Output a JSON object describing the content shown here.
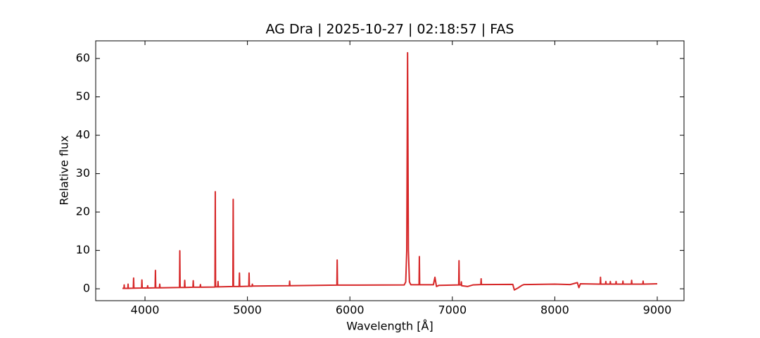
{
  "chart_data": {
    "type": "line",
    "title": "AG Dra | 2025-10-27 | 02:18:57 | FAS",
    "x_label": "Wavelength [Å]",
    "y_label": "Relative flux",
    "xlim": [
      3519,
      9261
    ],
    "ylim": [
      -3.1,
      64.6
    ],
    "xticks": [
      4000,
      5000,
      6000,
      7000,
      8000,
      9000
    ],
    "yticks": [
      0,
      10,
      20,
      30,
      40,
      50,
      60
    ],
    "x": [
      3780,
      3795,
      3797,
      3799,
      3833,
      3835,
      3837,
      3886,
      3889,
      3892,
      3967,
      3970,
      3973,
      4023,
      4026,
      4029,
      4099,
      4102,
      4105,
      4141,
      4144,
      4147,
      4337,
      4340,
      4343,
      4385,
      4388,
      4391,
      4468,
      4471,
      4474,
      4538,
      4541,
      4544,
      4683,
      4686,
      4689,
      4710,
      4713,
      4716,
      4858,
      4861,
      4864,
      4919,
      4922,
      4925,
      5013,
      5016,
      5019,
      5045,
      5048,
      5051,
      5409,
      5412,
      5415,
      5873,
      5876,
      5879,
      6530,
      6545,
      6555,
      6563,
      6571,
      6581,
      6595,
      6675,
      6678,
      6681,
      6815,
      6830,
      6845,
      6870,
      7062,
      7065,
      7068,
      7085,
      7088,
      7091,
      7150,
      7200,
      7278,
      7281,
      7284,
      7590,
      7605,
      7640,
      7680,
      7700,
      8000,
      8150,
      8220,
      8235,
      8250,
      8443,
      8446,
      8449,
      8495,
      8498,
      8501,
      8539,
      8542,
      8545,
      8595,
      8598,
      8601,
      8662,
      8665,
      8668,
      8747,
      8750,
      8753,
      8859,
      8862,
      8865,
      9000
    ],
    "series": [
      {
        "name": "AG Dra",
        "color": "#d62728",
        "values": [
          0.1,
          0.1,
          1.0,
          0.1,
          0.1,
          1.2,
          0.1,
          0.15,
          2.8,
          0.15,
          0.2,
          2.3,
          0.2,
          0.2,
          0.8,
          0.2,
          0.25,
          4.8,
          0.25,
          0.25,
          1.2,
          0.25,
          0.35,
          9.9,
          0.35,
          0.35,
          2.2,
          0.35,
          0.4,
          2.1,
          0.4,
          0.4,
          1.1,
          0.4,
          0.45,
          25.3,
          0.5,
          0.5,
          1.9,
          0.5,
          0.6,
          23.3,
          0.6,
          0.6,
          4.1,
          0.6,
          0.65,
          4.1,
          0.65,
          0.65,
          1.2,
          0.7,
          0.8,
          2.0,
          0.8,
          0.95,
          7.5,
          0.95,
          1.0,
          1.8,
          10,
          61.5,
          10,
          1.8,
          1.05,
          1.05,
          8.4,
          1.05,
          1.05,
          3.0,
          0.6,
          0.9,
          1.0,
          7.3,
          1.0,
          1.0,
          1.8,
          0.8,
          0.6,
          1.0,
          1.1,
          2.6,
          1.1,
          1.15,
          -0.3,
          0.2,
          0.9,
          1.1,
          1.2,
          1.1,
          1.6,
          0.3,
          1.3,
          1.2,
          3.0,
          1.2,
          1.2,
          1.9,
          1.2,
          1.2,
          1.9,
          1.2,
          1.2,
          1.9,
          1.2,
          1.2,
          2.0,
          1.2,
          1.2,
          2.2,
          1.2,
          1.2,
          2.0,
          1.2,
          1.3
        ]
      }
    ]
  }
}
